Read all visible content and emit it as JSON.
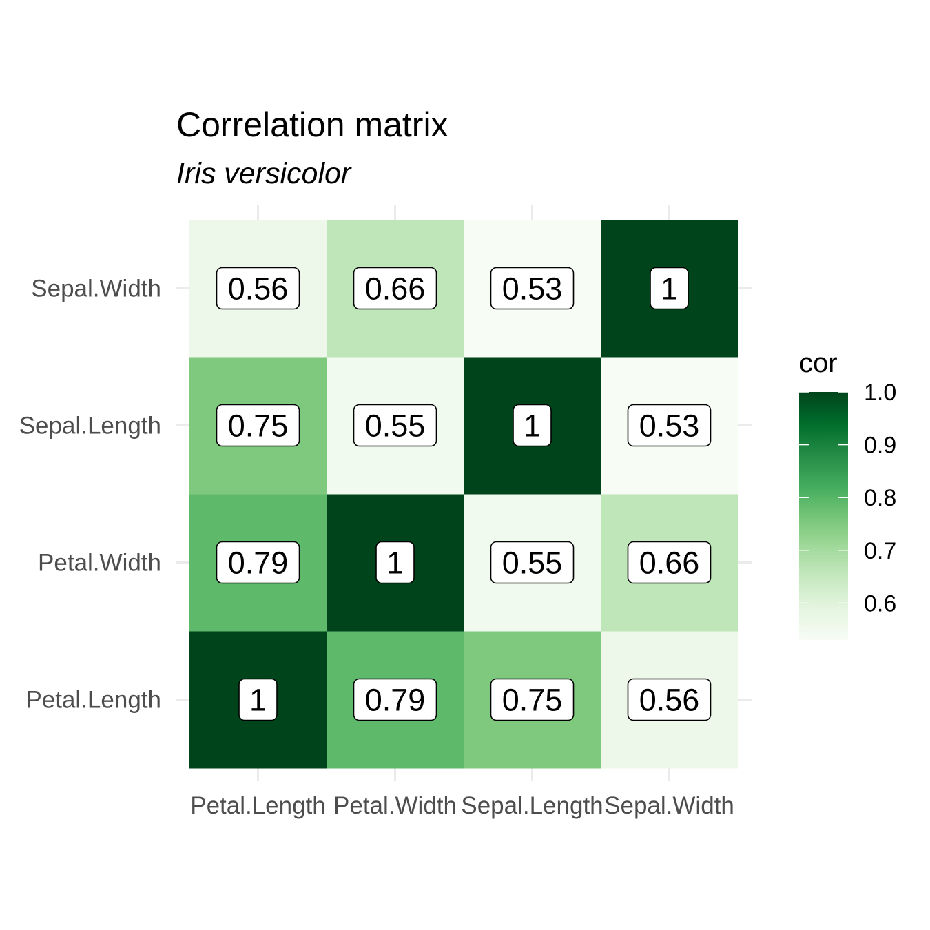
{
  "chart_data": {
    "type": "heatmap",
    "title": "Correlation matrix",
    "subtitle": "Iris versicolor",
    "x_categories": [
      "Petal.Length",
      "Petal.Width",
      "Sepal.Length",
      "Sepal.Width"
    ],
    "y_categories": [
      "Petal.Length",
      "Petal.Width",
      "Sepal.Length",
      "Sepal.Width"
    ],
    "values": [
      [
        1.0,
        0.79,
        0.75,
        0.56
      ],
      [
        0.79,
        1.0,
        0.55,
        0.66
      ],
      [
        0.75,
        0.55,
        1.0,
        0.53
      ],
      [
        0.56,
        0.66,
        0.53,
        1.0
      ]
    ],
    "labels": [
      [
        "1",
        "0.79",
        "0.75",
        "0.56"
      ],
      [
        "0.79",
        "1",
        "0.55",
        "0.66"
      ],
      [
        "0.75",
        "0.55",
        "1",
        "0.53"
      ],
      [
        "0.56",
        "0.66",
        "0.53",
        "1"
      ]
    ],
    "legend": {
      "title": "cor",
      "ticks": [
        "1.0",
        "0.9",
        "0.8",
        "0.7",
        "0.6"
      ],
      "tick_values": [
        1.0,
        0.9,
        0.8,
        0.7,
        0.6
      ],
      "range": [
        0.53,
        1.0
      ],
      "placement": "right"
    },
    "colors": {
      "low": "#f7fcf5",
      "high": "#00441b",
      "scale": [
        "#f7fcf5",
        "#e5f5e0",
        "#c7e9c0",
        "#a1d99b",
        "#74c476",
        "#41ab5d",
        "#238b45",
        "#006d2c",
        "#00441b"
      ]
    },
    "grid": true
  }
}
